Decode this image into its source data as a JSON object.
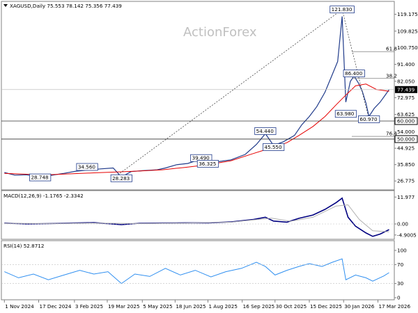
{
  "chart_data": [
    {
      "type": "line",
      "panel": "price",
      "title": "XAGUSD,Daily  75.553 78.142 75.356 77.439",
      "watermark": "ActionForex",
      "symbol_icon": "triangle-down-icon",
      "ylim": [
        23.0,
        124.0
      ],
      "y_ticks": [
        26.775,
        35.85,
        44.925,
        54.0,
        63.625,
        72.975,
        82.05,
        91.4,
        100.75,
        109.825,
        119.175
      ],
      "y_tick_labels": [
        "26.775",
        "35.850",
        "44.925",
        "54.000",
        "63.625",
        "72.975",
        "82.050",
        "91.400",
        "100.750",
        "109.825",
        "119.175"
      ],
      "current_price": {
        "value": 77.439,
        "label": "77.439",
        "color": "#000000"
      },
      "levels": [
        {
          "value": 60.0,
          "label": "60.000"
        },
        {
          "value": 50.0,
          "label": "50.000"
        }
      ],
      "fib_labels": [
        {
          "value": 98.5,
          "label": "61.8"
        },
        {
          "value": 83.6,
          "label": "38.2"
        },
        {
          "value": 51.5,
          "label": "76.4"
        }
      ],
      "price_labels": [
        {
          "value": 121.83,
          "label": "121.830",
          "date": "2026-01-28"
        },
        {
          "value": 86.4,
          "label": "86.400",
          "date": "2026-02-13"
        },
        {
          "value": 63.98,
          "label": "63.980",
          "date": "2026-02-02"
        },
        {
          "value": 60.97,
          "label": "60.970",
          "date": "2026-03-05"
        },
        {
          "value": 54.44,
          "label": "54.440",
          "date": "2025-10-17"
        },
        {
          "value": 45.55,
          "label": "45.550",
          "date": "2025-10-28"
        },
        {
          "value": 39.49,
          "label": "39.490",
          "date": "2025-07-23"
        },
        {
          "value": 36.325,
          "label": "36.325",
          "date": "2025-08-01"
        },
        {
          "value": 34.56,
          "label": "34.560",
          "date": "2025-02-20"
        },
        {
          "value": 28.748,
          "label": "28.748",
          "date": "2024-12-19"
        },
        {
          "value": 28.283,
          "label": "28.283",
          "date": "2025-04-07"
        }
      ],
      "series": [
        {
          "name": "",
          "kind": "price",
          "color": "#1f3a8a",
          "dates": [
            "2024-11-01",
            "2024-11-15",
            "2024-12-01",
            "2024-12-19",
            "2025-01-01",
            "2025-01-20",
            "2025-02-05",
            "2025-02-20",
            "2025-03-10",
            "2025-03-27",
            "2025-04-07",
            "2025-04-20",
            "2025-05-05",
            "2025-05-25",
            "2025-06-05",
            "2025-06-20",
            "2025-07-05",
            "2025-07-23",
            "2025-08-01",
            "2025-08-15",
            "2025-09-01",
            "2025-09-20",
            "2025-10-05",
            "2025-10-17",
            "2025-10-28",
            "2025-11-10",
            "2025-11-25",
            "2025-12-05",
            "2025-12-15",
            "2025-12-25",
            "2026-01-05",
            "2026-01-15",
            "2026-01-22",
            "2026-01-28",
            "2026-02-02",
            "2026-02-08",
            "2026-02-13",
            "2026-02-19",
            "2026-02-24",
            "2026-03-01",
            "2026-03-05",
            "2026-03-12",
            "2026-03-20",
            "2026-03-27",
            "2026-04-01"
          ],
          "values": [
            31.5,
            30.0,
            30.2,
            28.8,
            29.8,
            31.0,
            32.2,
            32.8,
            33.5,
            34.0,
            29.0,
            32.0,
            32.5,
            33.0,
            34.0,
            35.8,
            36.5,
            39.0,
            36.6,
            37.5,
            38.5,
            41.5,
            47.0,
            53.0,
            46.5,
            48.5,
            52.0,
            58.0,
            62.5,
            68.0,
            76.0,
            86.0,
            93.0,
            118.0,
            70.5,
            82.0,
            85.0,
            81.0,
            76.5,
            70.0,
            62.5,
            67.0,
            70.5,
            74.5,
            77.44
          ]
        },
        {
          "name": "",
          "kind": "moving-average",
          "color": "#e60000",
          "dates": [
            "2024-11-01",
            "2024-12-01",
            "2025-01-01",
            "2025-02-01",
            "2025-03-01",
            "2025-04-01",
            "2025-05-01",
            "2025-06-01",
            "2025-07-01",
            "2025-08-01",
            "2025-09-01",
            "2025-10-01",
            "2025-10-28",
            "2025-11-15",
            "2025-12-01",
            "2025-12-20",
            "2026-01-05",
            "2026-01-20",
            "2026-02-01",
            "2026-02-15",
            "2026-03-01",
            "2026-03-15",
            "2026-04-01"
          ],
          "values": [
            31.0,
            30.5,
            30.3,
            30.8,
            31.3,
            31.8,
            32.3,
            33.0,
            34.3,
            35.8,
            38.0,
            42.0,
            45.5,
            48.0,
            52.0,
            57.0,
            62.5,
            69.0,
            74.0,
            79.5,
            80.5,
            77.5,
            76.5
          ]
        }
      ],
      "trendlines": [
        {
          "from": {
            "date": "2025-03-27",
            "value": 28.3
          },
          "to": {
            "date": "2026-01-28",
            "value": 121.8
          },
          "style": "dashed"
        },
        {
          "from": {
            "date": "2026-01-28",
            "value": 121.8
          },
          "to": {
            "date": "2026-03-05",
            "value": 61.0
          },
          "style": "dashed"
        }
      ]
    },
    {
      "type": "line",
      "panel": "macd",
      "title": "MACD(12,26,9) -1.1765 -2.3342",
      "ylim": [
        -6.5,
        13.0
      ],
      "y_ticks": [
        11.977,
        0.0,
        -4.9005
      ],
      "y_tick_labels": [
        "11.977",
        "0.00",
        "-4.9005"
      ],
      "series": [
        {
          "name": "",
          "kind": "macd-main",
          "color": "#000080",
          "dates": [
            "2024-11-01",
            "2024-12-01",
            "2025-01-01",
            "2025-02-01",
            "2025-03-01",
            "2025-04-07",
            "2025-05-01",
            "2025-06-01",
            "2025-07-01",
            "2025-08-01",
            "2025-09-01",
            "2025-10-01",
            "2025-10-17",
            "2025-10-28",
            "2025-11-15",
            "2025-12-01",
            "2025-12-20",
            "2026-01-05",
            "2026-01-20",
            "2026-01-28",
            "2026-02-05",
            "2026-02-15",
            "2026-03-01",
            "2026-03-10",
            "2026-03-20",
            "2026-04-01"
          ],
          "values": [
            0.4,
            0.0,
            0.2,
            0.4,
            0.6,
            -0.3,
            0.3,
            0.4,
            0.5,
            0.5,
            0.9,
            2.0,
            3.0,
            1.3,
            0.8,
            2.5,
            4.0,
            6.5,
            9.5,
            11.5,
            3.0,
            -1.0,
            -4.0,
            -5.5,
            -4.5,
            -2.5
          ]
        },
        {
          "name": "",
          "kind": "macd-signal",
          "color": "#b0b0b0",
          "dates": [
            "2024-11-01",
            "2025-01-01",
            "2025-03-01",
            "2025-05-01",
            "2025-07-01",
            "2025-09-01",
            "2025-10-25",
            "2025-11-20",
            "2025-12-20",
            "2026-01-20",
            "2026-02-05",
            "2026-02-20",
            "2026-03-10",
            "2026-04-01"
          ],
          "values": [
            0.3,
            0.2,
            0.4,
            0.2,
            0.4,
            0.8,
            2.6,
            1.2,
            3.0,
            8.0,
            8.5,
            2.0,
            -3.0,
            -3.5
          ]
        }
      ]
    },
    {
      "type": "line",
      "panel": "rsi",
      "title": "RSI(14) 52.8712",
      "ylim": [
        0,
        100
      ],
      "y_ticks": [
        100,
        70,
        30,
        0
      ],
      "y_tick_labels": [
        "100",
        "70",
        "30",
        "0"
      ],
      "series": [
        {
          "name": "",
          "kind": "rsi",
          "color": "#2f8ff0",
          "dates": [
            "2024-11-01",
            "2024-11-20",
            "2024-12-10",
            "2024-12-30",
            "2025-01-20",
            "2025-02-10",
            "2025-03-01",
            "2025-03-20",
            "2025-04-07",
            "2025-04-25",
            "2025-05-15",
            "2025-06-05",
            "2025-06-25",
            "2025-07-15",
            "2025-08-05",
            "2025-08-25",
            "2025-09-15",
            "2025-10-05",
            "2025-10-17",
            "2025-10-30",
            "2025-11-15",
            "2025-12-01",
            "2025-12-15",
            "2026-01-01",
            "2026-01-15",
            "2026-01-28",
            "2026-02-02",
            "2026-02-15",
            "2026-03-01",
            "2026-03-10",
            "2026-03-25",
            "2026-04-01"
          ],
          "values": [
            55,
            42,
            50,
            38,
            48,
            58,
            50,
            55,
            30,
            50,
            45,
            62,
            48,
            58,
            44,
            55,
            62,
            75,
            66,
            48,
            58,
            66,
            72,
            66,
            75,
            82,
            38,
            48,
            42,
            35,
            46,
            52.87
          ]
        }
      ]
    }
  ],
  "x_axis": {
    "start": "2024-10-28",
    "end": "2026-04-08",
    "ticks": [
      {
        "date": "2024-11-01",
        "label": "1 Nov 2024"
      },
      {
        "date": "2024-12-17",
        "label": "17 Dec 2024"
      },
      {
        "date": "2025-02-03",
        "label": "3 Feb 2025"
      },
      {
        "date": "2025-03-19",
        "label": "19 Mar 2025"
      },
      {
        "date": "2025-05-05",
        "label": "5 May 2025"
      },
      {
        "date": "2025-06-18",
        "label": "18 Jun 2025"
      },
      {
        "date": "2025-08-01",
        "label": "1 Aug 2025"
      },
      {
        "date": "2025-09-16",
        "label": "16 Sep 2025"
      },
      {
        "date": "2025-10-30",
        "label": "30 Oct 2025"
      },
      {
        "date": "2025-12-15",
        "label": "15 Dec 2025"
      },
      {
        "date": "2026-01-30",
        "label": "30 Jan 2026"
      },
      {
        "date": "2026-03-17",
        "label": "17 Mar 2026"
      }
    ]
  }
}
